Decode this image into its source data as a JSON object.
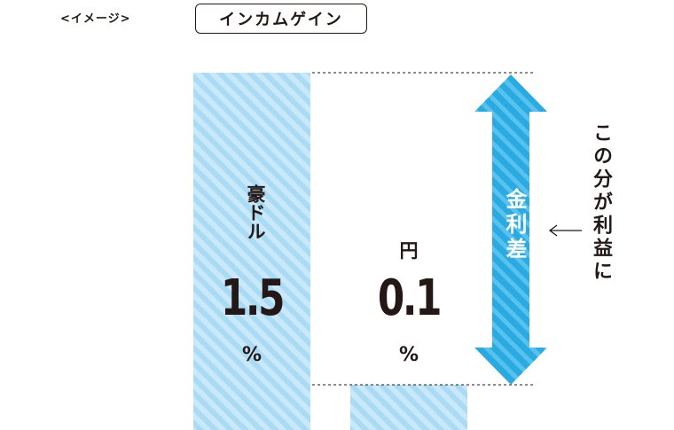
{
  "header": {
    "caption": "<イメージ>",
    "title": "インカムゲイン"
  },
  "chart_data": {
    "type": "bar",
    "title": "インカムゲイン",
    "categories": [
      "豪ドル",
      "円"
    ],
    "values": [
      1.5,
      0.1
    ],
    "unit": "%",
    "ylim": [
      0,
      1.7
    ],
    "colors": {
      "bar": "#a9dbf5",
      "bar_stripe": "#c9e9fa",
      "arrow": "#29abe2",
      "arrow_stripe": "#58c1ee",
      "text": "#231815"
    }
  },
  "labels": {
    "aud_name": "豪ドル",
    "aud_value": "1.5",
    "aud_unit": "%",
    "jpy_name": "円",
    "jpy_value": "0.1",
    "jpy_unit": "%"
  },
  "annotation": {
    "arrow_label": "金利差",
    "note": "この分が利益に",
    "pointer_icon": "left-arrow-icon"
  }
}
